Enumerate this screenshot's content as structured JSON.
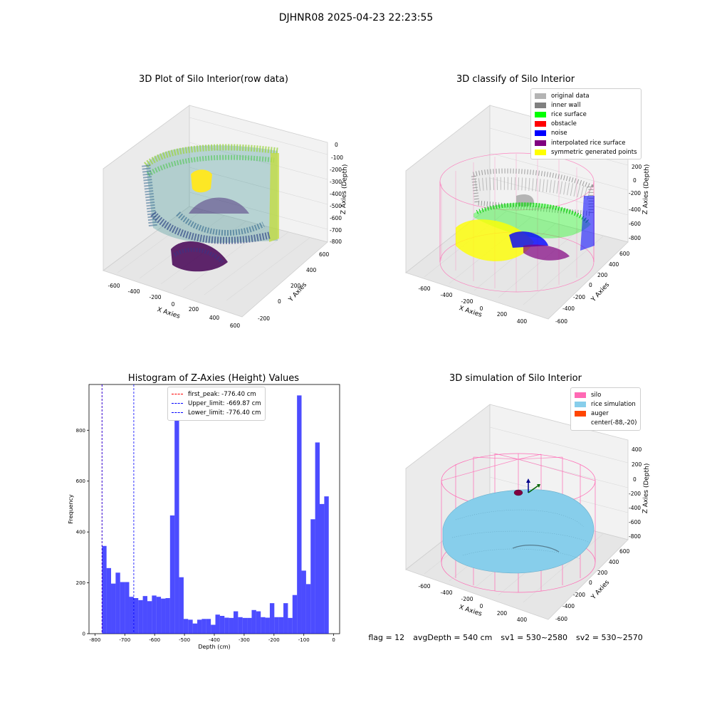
{
  "suptitle": "DJHNR08 2025-04-23 22:23:55",
  "panels": {
    "raw": {
      "title": "3D Plot of Silo Interior(row data)",
      "xlabel": "X Axies",
      "ylabel": "Y Axies",
      "zlabel": "Z Axies (Depth)",
      "xticks": [
        "-600",
        "-400",
        "-200",
        "0",
        "200",
        "400",
        "600"
      ],
      "yticks": [
        "-200",
        "0",
        "200",
        "400",
        "600"
      ],
      "zticks": [
        "0",
        "-100",
        "-200",
        "-300",
        "-400",
        "-500",
        "-600",
        "-700",
        "-800"
      ]
    },
    "classify": {
      "title": "3D classify of Silo Interior",
      "xlabel": "X Axies",
      "ylabel": "Y Axies",
      "zlabel": "Z Axies (Depth)",
      "xticks": [
        "-600",
        "-400",
        "-200",
        "0",
        "200",
        "400"
      ],
      "yticks": [
        "-600",
        "-400",
        "-200",
        "0",
        "200",
        "400",
        "600"
      ],
      "zticks": [
        "400",
        "200",
        "0",
        "-200",
        "-400",
        "-600",
        "-800"
      ],
      "legend": [
        {
          "label": "original data",
          "color": "#b4b4b4"
        },
        {
          "label": "inner wall",
          "color": "#808080"
        },
        {
          "label": "rice surface",
          "color": "#00ff00"
        },
        {
          "label": "obstacle",
          "color": "#ff0000"
        },
        {
          "label": "noise",
          "color": "#0000ff"
        },
        {
          "label": "interpolated rice surface",
          "color": "#800080"
        },
        {
          "label": "symmetric generated points",
          "color": "#ffff00"
        }
      ]
    },
    "simulation": {
      "title": "3D simulation of Silo Interior",
      "xlabel": "X Axies",
      "ylabel": "Y Axies",
      "zlabel": "Z Axies (Depth)",
      "xticks": [
        "-600",
        "-400",
        "-200",
        "0",
        "200",
        "400"
      ],
      "yticks": [
        "-600",
        "-400",
        "-200",
        "0",
        "200",
        "400",
        "600"
      ],
      "zticks": [
        "400",
        "200",
        "0",
        "-200",
        "-400",
        "-600",
        "-800"
      ],
      "legend": [
        {
          "label": "silo",
          "color": "#ff69b4"
        },
        {
          "label": "rice simulation",
          "color": "#87ceeb"
        },
        {
          "label": "auger",
          "color": "#ff4500"
        },
        {
          "label": "center(-88,-20)",
          "color": ""
        }
      ]
    }
  },
  "footer": {
    "flag": "flag = 12",
    "avg": "avgDepth = 540 cm",
    "sv1": "sv1 = 530~2580",
    "sv2": "sv2 = 530~2570"
  },
  "colors": {
    "bar": "#0000ff",
    "pink": "#ff69b4",
    "rice": "#87ceeb",
    "pane": "#f2f2f2"
  },
  "chart_data": {
    "type": "bar",
    "title": "Histogram of Z-Axies (Height) Values",
    "xlabel": "Depth (cm)",
    "ylabel": "Frequency",
    "xlim": [
      -820,
      20
    ],
    "ylim": [
      0,
      980
    ],
    "xticks": [
      -800,
      -700,
      -600,
      -500,
      -400,
      -300,
      -200,
      -100,
      0
    ],
    "yticks": [
      0,
      200,
      400,
      600,
      800
    ],
    "bin_width": 15.2,
    "bin_start": -776.4,
    "values": [
      345,
      258,
      197,
      240,
      203,
      203,
      145,
      140,
      132,
      148,
      128,
      150,
      145,
      138,
      140,
      465,
      840,
      222,
      58,
      55,
      40,
      55,
      58,
      58,
      35,
      75,
      70,
      63,
      62,
      88,
      65,
      62,
      62,
      93,
      88,
      65,
      63,
      120,
      65,
      65,
      120,
      62,
      152,
      937,
      248,
      195,
      450,
      752,
      510,
      540
    ],
    "lines": [
      {
        "label": "first_peak: -776.40 cm",
        "x": -776.4,
        "color": "#ff0000"
      },
      {
        "label": "Upper_limit: -669.87 cm",
        "x": -669.87,
        "color": "#0000ff"
      },
      {
        "label": "Lower_limit: -776.40 cm",
        "x": -776.4,
        "color": "#0000ff"
      }
    ]
  }
}
